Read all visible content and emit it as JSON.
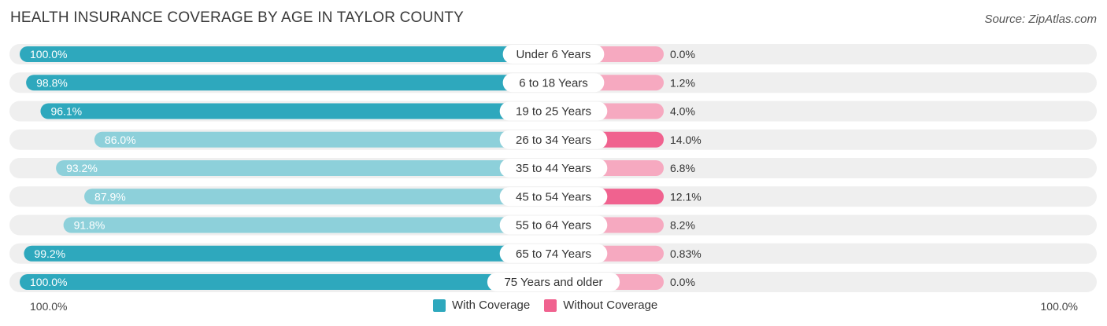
{
  "header": {
    "title": "HEALTH INSURANCE COVERAGE BY AGE IN TAYLOR COUNTY",
    "source": "Source: ZipAtlas.com"
  },
  "colors": {
    "with_strong": "#2ea8bd",
    "with_light": "#8dd0da",
    "without_strong": "#f0628f",
    "without_light": "#f6a9c0",
    "track": "#efefef"
  },
  "axis": {
    "left_label": "100.0%",
    "right_label": "100.0%"
  },
  "legend": {
    "with_label": "With Coverage",
    "without_label": "Without Coverage"
  },
  "chart_data": {
    "type": "bar",
    "orientation": "horizontal-diverging",
    "title": "HEALTH INSURANCE COVERAGE BY AGE IN TAYLOR COUNTY",
    "categories": [
      "Under 6 Years",
      "6 to 18 Years",
      "19 to 25 Years",
      "26 to 34 Years",
      "35 to 44 Years",
      "45 to 54 Years",
      "55 to 64 Years",
      "65 to 74 Years",
      "75 Years and older"
    ],
    "series": [
      {
        "name": "With Coverage",
        "values": [
          100.0,
          98.8,
          96.1,
          86.0,
          93.2,
          87.9,
          91.8,
          99.2,
          100.0
        ],
        "labels": [
          "100.0%",
          "98.8%",
          "96.1%",
          "86.0%",
          "93.2%",
          "87.9%",
          "91.8%",
          "99.2%",
          "100.0%"
        ]
      },
      {
        "name": "Without Coverage",
        "values": [
          0.0,
          1.2,
          4.0,
          14.0,
          6.8,
          12.1,
          8.2,
          0.83,
          0.0
        ],
        "labels": [
          "0.0%",
          "1.2%",
          "4.0%",
          "14.0%",
          "6.8%",
          "12.1%",
          "8.2%",
          "0.83%",
          "0.0%"
        ]
      }
    ],
    "xlim": [
      0,
      100
    ],
    "xlabel_left": "100.0%",
    "xlabel_right": "100.0%",
    "legend_position": "bottom-center"
  }
}
